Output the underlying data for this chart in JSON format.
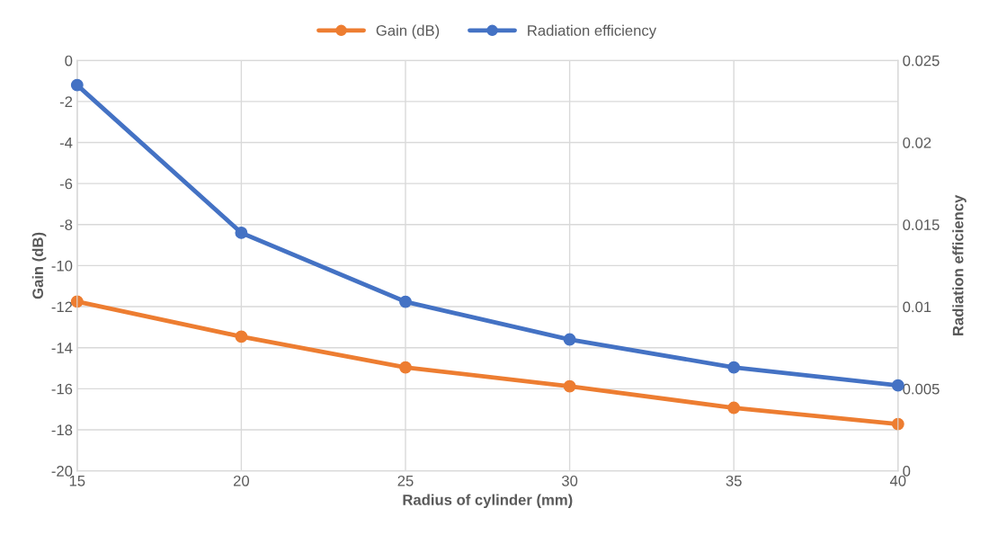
{
  "chart_data": {
    "type": "line",
    "xlabel": "Radius of cylinder (mm)",
    "ylabel": "Gain (dB)",
    "y2label": "Radiation efficiency",
    "x": [
      15,
      20,
      25,
      30,
      35,
      40
    ],
    "series": [
      {
        "name": "Gain (dB)",
        "color": "#ed7d31",
        "values": [
          -11.75,
          -13.46,
          -14.96,
          -15.88,
          -16.93,
          -17.72
        ]
      },
      {
        "name": "Radiation efficiency",
        "color": "#4472c4",
        "axis": "y2",
        "values": [
          0.0235,
          0.0145,
          0.0103,
          0.008,
          0.0063,
          0.0052
        ]
      }
    ],
    "xlim": [
      15,
      40
    ],
    "xticks": [
      15,
      20,
      25,
      30,
      35,
      40
    ],
    "ylim": [
      -20,
      0
    ],
    "yticks": [
      -20,
      -18,
      -16,
      -14,
      -12,
      -10,
      -8,
      -6,
      -4,
      -2,
      0
    ],
    "y2lim": [
      0,
      0.025
    ],
    "y2ticks": [
      0,
      0.005,
      0.01,
      0.015,
      0.02,
      0.025
    ],
    "grid": true,
    "legend": "top",
    "marker": "circle",
    "line_style": "solid"
  }
}
